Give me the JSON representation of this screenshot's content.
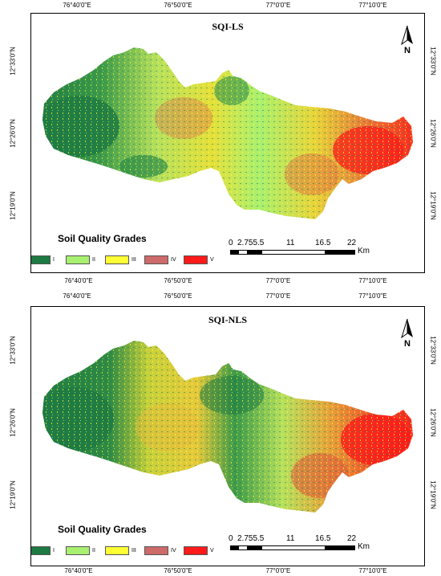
{
  "panels": [
    {
      "title": "SQI-LS",
      "top_ticks": [
        "76°40'0\"E",
        "76°50'0\"E",
        "77°0'0\"E",
        "77°10'0\"E"
      ],
      "bottom_ticks": [
        "76°40'0\"E",
        "76°50'0\"E",
        "77°0'0\"E",
        "77°10'0\"E"
      ],
      "left_ticks": [
        "12°33'0\"N",
        "12°26'0\"N",
        "12°19'0\"N"
      ],
      "right_ticks": [
        "12°33'0\"N",
        "12°26'0\"N",
        "12°19'0\"N"
      ],
      "north_label": "N",
      "legend": {
        "title": "Soil Quality Grades",
        "grades": [
          {
            "label": "I",
            "color": "#1e7a43"
          },
          {
            "label": "II",
            "color": "#a8f070"
          },
          {
            "label": "III",
            "color": "#ffff33"
          },
          {
            "label": "IV",
            "color": "#cd6a6a"
          },
          {
            "label": "V",
            "color": "#ff1a1a"
          }
        ]
      },
      "scale": {
        "numbers": [
          "0",
          "2.755.5",
          "11",
          "16.5",
          "22"
        ],
        "unit": "Km"
      }
    },
    {
      "title": "SQI-NLS",
      "top_ticks": [
        "76°40'0\"E",
        "76°50'0\"E",
        "77°0'0\"E",
        "77°10'0\"E"
      ],
      "bottom_ticks": [
        "76°40'0\"E",
        "76°50'0\"E",
        "77°0'0\"E",
        "77°10'0\"E"
      ],
      "left_ticks": [
        "12°33'0\"N",
        "12°26'0\"N",
        "12°19'0\"N"
      ],
      "right_ticks": [
        "12°33'0\"N",
        "12°26'0\"N",
        "12°19'0\"N"
      ],
      "north_label": "N",
      "legend": {
        "title": "Soil Quality Grades",
        "grades": [
          {
            "label": "I",
            "color": "#1e7a43"
          },
          {
            "label": "II",
            "color": "#a8f070"
          },
          {
            "label": "III",
            "color": "#ffff33"
          },
          {
            "label": "IV",
            "color": "#cd6a6a"
          },
          {
            "label": "V",
            "color": "#ff1a1a"
          }
        ]
      },
      "scale": {
        "numbers": [
          "0",
          "2.755.5",
          "11",
          "16.5",
          "22"
        ],
        "unit": "Km"
      }
    }
  ]
}
